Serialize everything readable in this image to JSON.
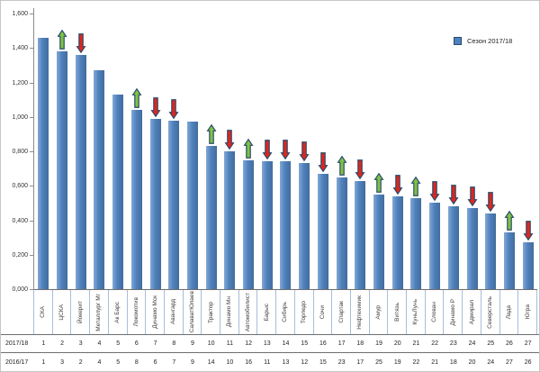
{
  "legend": {
    "label": "Сезон 2017/18"
  },
  "y_axis": {
    "tick_labels": [
      "1,600",
      "1,400",
      "1,200",
      "1,000",
      "0,800",
      "0,600",
      "0,400",
      "0,200",
      "0,000"
    ],
    "tick_values": [
      1.6,
      1.4,
      1.2,
      1.0,
      0.8,
      0.6,
      0.4,
      0.2,
      0.0
    ]
  },
  "rank_table": {
    "row1_header": "2017/18",
    "row2_header": "2016/17"
  },
  "chart_data": {
    "type": "bar",
    "title": "",
    "legend_entries": [
      "Сезон 2017/18"
    ],
    "legend_position": "top-right",
    "grid": false,
    "ylim": [
      0,
      1.6
    ],
    "categories": [
      "СКА",
      "ЦСКА",
      "Йокерит",
      "Металлург Мг",
      "Ак Барс",
      "Локомотив",
      "Динамо Мск",
      "Авангард",
      "СалаватЮлаев",
      "Трактор",
      "Динамо Мн",
      "Автомобилист",
      "Барыс",
      "Сибирь",
      "Торпедо",
      "Сочи",
      "Спартак",
      "Нефтехимик",
      "Амур",
      "Витязь",
      "КуньЛунь",
      "Слован",
      "Динамо Р",
      "Адмирал",
      "Северсталь",
      "Лада",
      "Югра"
    ],
    "series": [
      {
        "name": "Сезон 2017/18",
        "values": [
          1.46,
          1.38,
          1.36,
          1.27,
          1.13,
          1.04,
          0.99,
          0.98,
          0.97,
          0.83,
          0.8,
          0.75,
          0.74,
          0.74,
          0.73,
          0.67,
          0.65,
          0.63,
          0.55,
          0.54,
          0.53,
          0.5,
          0.48,
          0.47,
          0.44,
          0.33,
          0.27
        ]
      }
    ],
    "arrows": [
      "none",
      "up",
      "down",
      "none",
      "none",
      "up",
      "down",
      "down",
      "none",
      "up",
      "down",
      "up",
      "down",
      "down",
      "down",
      "down",
      "up",
      "down",
      "up",
      "down",
      "up",
      "down",
      "down",
      "down",
      "down",
      "up",
      "down"
    ],
    "rank_rows": [
      {
        "label": "2017/18",
        "values": [
          1,
          2,
          3,
          4,
          5,
          6,
          7,
          8,
          9,
          10,
          11,
          12,
          13,
          14,
          15,
          16,
          17,
          18,
          19,
          20,
          21,
          22,
          23,
          24,
          25,
          26,
          27
        ]
      },
      {
        "label": "2016/17",
        "values": [
          1,
          3,
          2,
          4,
          5,
          8,
          6,
          7,
          9,
          14,
          10,
          16,
          11,
          13,
          12,
          15,
          23,
          17,
          25,
          19,
          22,
          21,
          18,
          20,
          24,
          27,
          26
        ]
      }
    ],
    "colors": {
      "bar": "#4f81bd",
      "up_arrow": "#7fc241",
      "down_arrow": "#e0261b",
      "arrow_border": "#27496d"
    }
  }
}
